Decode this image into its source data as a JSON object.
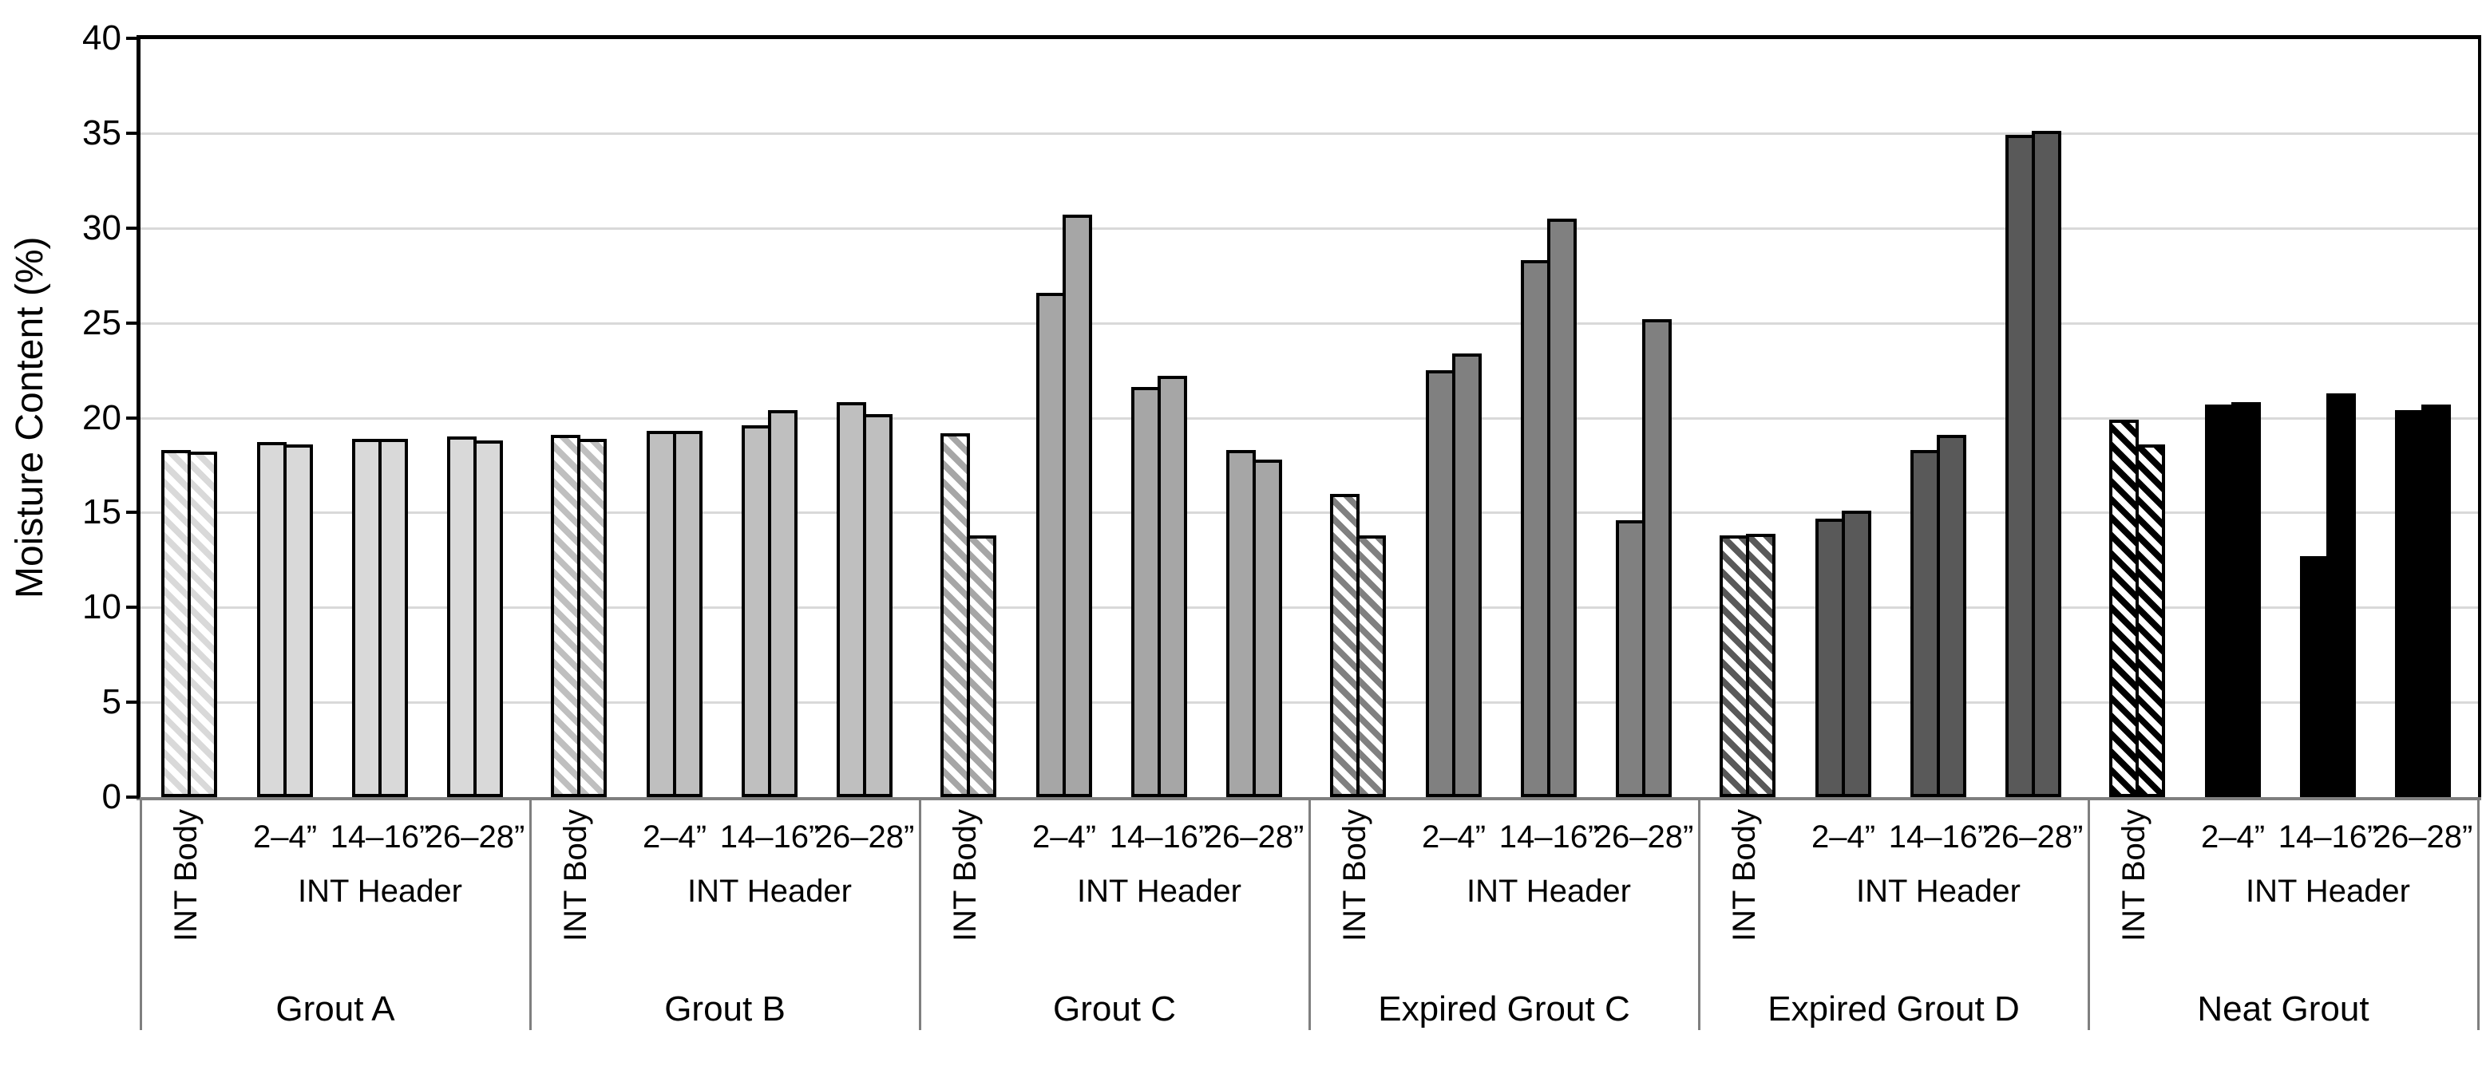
{
  "chart_data": {
    "type": "bar",
    "title": "",
    "ylabel": "Moisture Content (%)",
    "xlabel": "",
    "ylim": [
      0,
      40
    ],
    "yticks": [
      0,
      5,
      10,
      15,
      20,
      25,
      30,
      35,
      40
    ],
    "grid": "horizontal",
    "legend": "none",
    "bars_per_category": 2,
    "body_category_label": "INT Body",
    "header_category_label": "INT Header",
    "depth_labels": [
      "2–4”",
      "14–16”",
      "26–28”"
    ],
    "groups": [
      {
        "name": "Grout A",
        "fill": "#d9d9d9",
        "int_body_pattern": "diagonal-hatch",
        "int_body": [
          18.3,
          18.2
        ],
        "header": [
          [
            18.7,
            18.6
          ],
          [
            18.9,
            18.9
          ],
          [
            19.0,
            18.8
          ]
        ]
      },
      {
        "name": "Grout B",
        "fill": "#bfbfbf",
        "int_body_pattern": "diagonal-hatch",
        "int_body": [
          19.1,
          18.9
        ],
        "header": [
          [
            19.3,
            19.3
          ],
          [
            19.6,
            20.4
          ],
          [
            20.8,
            20.2
          ]
        ]
      },
      {
        "name": "Grout C",
        "fill": "#a6a6a6",
        "int_body_pattern": "diagonal-hatch",
        "int_body": [
          19.2,
          13.8
        ],
        "header": [
          [
            26.6,
            30.7
          ],
          [
            21.6,
            22.2
          ],
          [
            18.3,
            17.8
          ]
        ]
      },
      {
        "name": "Expired Grout C",
        "fill": "#808080",
        "int_body_pattern": "diagonal-hatch",
        "int_body": [
          16.0,
          13.8
        ],
        "header": [
          [
            22.5,
            23.4
          ],
          [
            28.3,
            30.5
          ],
          [
            14.6,
            25.2
          ]
        ]
      },
      {
        "name": "Expired Grout D",
        "fill": "#595959",
        "int_body_pattern": "diagonal-hatch",
        "int_body": [
          13.8,
          13.9
        ],
        "header": [
          [
            14.7,
            15.1
          ],
          [
            18.3,
            19.1
          ],
          [
            34.9,
            35.1
          ]
        ]
      },
      {
        "name": "Neat Grout",
        "fill": "#000000",
        "int_body_pattern": "diagonal-hatch",
        "int_body": [
          19.9,
          18.6
        ],
        "header": [
          [
            20.7,
            20.8
          ],
          [
            12.7,
            21.3
          ],
          [
            20.4,
            20.7
          ]
        ]
      }
    ]
  },
  "colors": {
    "background": "#ffffff",
    "gridline": "#d9d9d9",
    "category_axis_line": "#7f7f7f",
    "plot_frame": "#000000",
    "bar_outline": "#000000",
    "hatch_background": "#ffffff"
  }
}
